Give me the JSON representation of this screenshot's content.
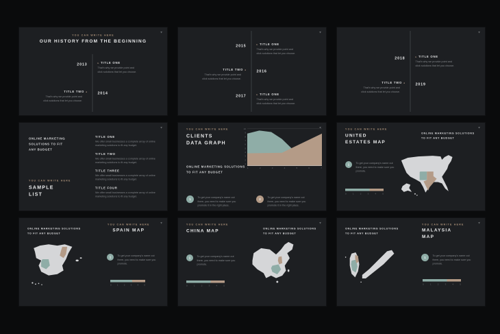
{
  "colors": {
    "canvas": "#0a0b0c",
    "slide_background": "#1d1f22",
    "accent_teal": "#8fada7",
    "accent_tan": "#b49b87",
    "map_gray": "#d5d6d8"
  },
  "slides": {
    "history1": {
      "kicker": "YOU CAN WRITE HERE",
      "title": "OUR HISTORY FROM THE BEGINNING",
      "entries": [
        {
          "year": "2013",
          "title": "TITLE ONE",
          "arrow": "▸",
          "body": "That's why we provide point and click solutions that let you choose."
        },
        {
          "year": "2014",
          "title": "TITLE TWO",
          "arrow": "◂",
          "body": "That's why we provide point and click solutions that let you choose."
        }
      ]
    },
    "history2": {
      "entries": [
        {
          "year": "2015",
          "title": "TITLE ONE",
          "arrow": "▸",
          "body": "That's why we provide point and click solutions that let you choose."
        },
        {
          "year": "2016",
          "title": "TITLE TWO",
          "arrow": "◂",
          "body": "That's why we provide point and click solutions that let you choose."
        },
        {
          "year": "2017",
          "title": "TITLE ONE",
          "arrow": "▸",
          "body": "That's why we provide point and click solutions that let you choose."
        }
      ]
    },
    "history3": {
      "entries": [
        {
          "year": "2018",
          "title": "TITLE ONE",
          "arrow": "▸",
          "body": "That's why we provide point and click solutions that let you choose."
        },
        {
          "year": "2019",
          "title": "TITLE TWO",
          "arrow": "◂",
          "body": "That's why we provide point and click solutions that let you choose."
        }
      ]
    },
    "list": {
      "lead_lines": [
        "ONLINE MARKETING",
        "SOLUTIONS TO FIT",
        "ANY BUDGET"
      ],
      "kicker": "YOU CAN WRITE HERE",
      "title_line1": "SAMPLE",
      "title_line2": "LIST",
      "items": [
        {
          "title": "TITLE ONE",
          "body": "We offer small businesses a complete array of online marketing solutions to fit any budget."
        },
        {
          "title": "TITLE TWO",
          "body": "We offer small businesses a complete array of online marketing solutions to fit any budget."
        },
        {
          "title": "TITLE THREE",
          "body": "We offer small businesses a complete array of online marketing solutions to fit any budget."
        },
        {
          "title": "TITLE FOUR",
          "body": "We offer small businesses a complete array of online marketing solutions to fit any budget."
        }
      ]
    },
    "graph": {
      "kicker": "YOU CAN WRITE HERE",
      "title_line1": "CLIENTS",
      "title_line2": "DATA GRAPH",
      "lead_lines": [
        "ONLINE MARKETING SOLUTIONS",
        "TO FIT ANY BUDGET"
      ],
      "notes": [
        {
          "num": "1",
          "text": "To get your company's name out there, you need to make sure you promote it in the right place."
        },
        {
          "num": "2",
          "text": "To get your company's name out there, you need to make sure you promote it in the right place."
        }
      ],
      "chart_data": {
        "type": "area",
        "x": [
          0,
          1,
          2,
          3,
          4,
          5,
          6
        ],
        "series": [
          {
            "name": "teal-area",
            "color": "#8fada7",
            "values": [
              8.7,
              9.3,
              9.0,
              7.3,
              4.5,
              2.5,
              0.5
            ]
          },
          {
            "name": "tan-area",
            "color": "#b49b87",
            "values": [
              3.3,
              3.3,
              3.3,
              3.4,
              5.0,
              6.8,
              8.7
            ]
          }
        ],
        "yticks": [
          "10",
          "9",
          "8",
          "7",
          "6",
          "5",
          "4",
          "3",
          "2",
          "1"
        ],
        "xticks": [
          "1",
          "2",
          "3",
          "4",
          "5",
          "6",
          "7"
        ],
        "ylim": [
          0,
          10
        ],
        "grid": false,
        "legend": false
      }
    },
    "usa": {
      "kicker": "YOU CAN WRITE HERE",
      "title_line1": "UNITED",
      "title_line2": "ESTATES MAP",
      "lead_lines": [
        "ONLINE MARKETING SOLUTIONS",
        "TO FIT ANY BUDGET"
      ],
      "note": {
        "num": "1",
        "text": "To get your company's name out there, you need to make sure you promote."
      },
      "bar": {
        "teal_pct": 63,
        "tan_pct": 37,
        "ticks": [
          "0",
          "1",
          "2",
          "3",
          "4",
          "5"
        ]
      }
    },
    "spain": {
      "kicker": "YOU CAN WRITE HERE",
      "title": "SPAIN MAP",
      "lead_lines": [
        "ONLINE MARKETING SOLUTIONS",
        "TO FIT ANY BUDGET"
      ],
      "note": {
        "num": "1",
        "text": "To get your company's name out there, you need to make sure you promote."
      },
      "bar": {
        "teal_pct": 63,
        "tan_pct": 37,
        "ticks": [
          "0",
          "1",
          "2",
          "3",
          "4",
          "5"
        ]
      }
    },
    "china": {
      "kicker": "YOU CAN WRITE HERE",
      "title": "CHINA MAP",
      "lead_lines": [
        "ONLINE MARKETING SOLUTIONS",
        "TO FIT ANY BUDGET"
      ],
      "note": {
        "num": "1",
        "text": "To get your company's name out there, you need to make sure you promote."
      },
      "bar": {
        "teal_pct": 63,
        "tan_pct": 37,
        "ticks": [
          "0",
          "1",
          "2",
          "3",
          "4",
          "5"
        ]
      }
    },
    "malaysia": {
      "kicker": "YOU CAN WRITE HERE",
      "title_line1": "MALAYSIA",
      "title_line2": "MAP",
      "lead_lines": [
        "ONLINE MARKETING SOLUTIONS",
        "TO FIT ANY BUDGET"
      ],
      "note": {
        "num": "1",
        "text": "To get your company's name out there, you need to make sure you promote."
      },
      "bar": {
        "teal_pct": 63,
        "tan_pct": 37,
        "ticks": [
          "0",
          "1",
          "2",
          "3",
          "4",
          "5"
        ]
      }
    }
  }
}
